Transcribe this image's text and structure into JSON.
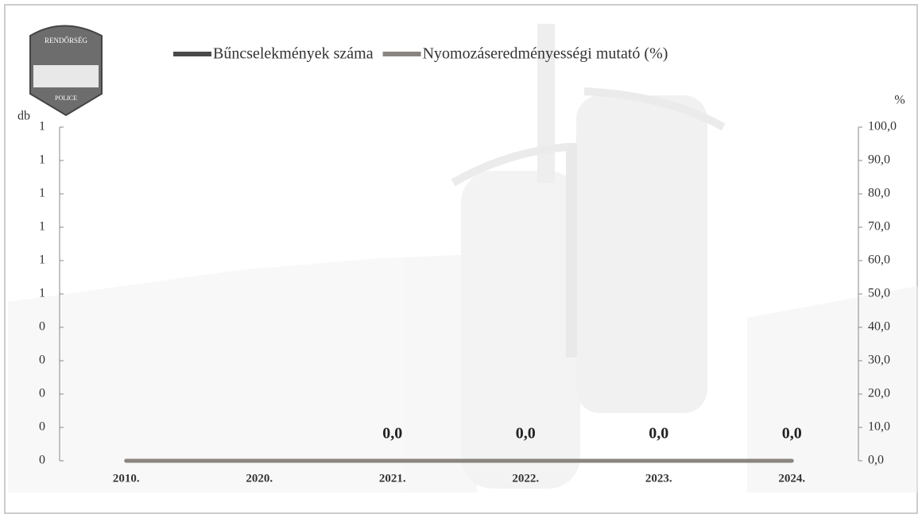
{
  "logo": {
    "top": "RENDŐRSÉG",
    "bottom": "POLICE"
  },
  "chart_data": {
    "type": "line",
    "y_label": "db",
    "y2_label": "%",
    "categories": [
      "2010.",
      "2020.",
      "2021.",
      "2022.",
      "2023.",
      "2024."
    ],
    "series": [
      {
        "name": "Bűncselekmények száma",
        "color": "#4a4a4a",
        "values": [
          0,
          0,
          0,
          0,
          0,
          0
        ]
      },
      {
        "name": "Nyomozáseredményességi mutató (%)",
        "color": "#8a8580",
        "axis": "y2",
        "values": [
          0,
          0,
          0,
          0,
          0,
          0
        ],
        "value_labels": [
          null,
          null,
          "0,0",
          "0,0",
          "0,0",
          "0,0"
        ]
      }
    ],
    "ylim": [
      0,
      1
    ],
    "yticks": [
      0,
      {
        "value": 0.1,
        "label": "0"
      },
      {
        "value": 0.2,
        "label": "0"
      },
      {
        "value": 0.3,
        "label": "0"
      },
      {
        "value": 0.4,
        "label": "0"
      },
      {
        "value": 0.5,
        "label": "1"
      },
      {
        "value": 0.6,
        "label": "1"
      },
      {
        "value": 0.7,
        "label": "1"
      },
      {
        "value": 0.8,
        "label": "1"
      },
      {
        "value": 0.9,
        "label": "1"
      },
      {
        "value": 1,
        "label": "1"
      }
    ],
    "y2lim": [
      0,
      100
    ],
    "y2ticks": [
      {
        "value": 0,
        "label": "0,0"
      },
      {
        "value": 10,
        "label": "10,0"
      },
      {
        "value": 20,
        "label": "20,0"
      },
      {
        "value": 30,
        "label": "30,0"
      },
      {
        "value": 40,
        "label": "40,0"
      },
      {
        "value": 50,
        "label": "50,0"
      },
      {
        "value": 60,
        "label": "60,0"
      },
      {
        "value": 70,
        "label": "70,0"
      },
      {
        "value": 80,
        "label": "80,0"
      },
      {
        "value": 90,
        "label": "90,0"
      },
      {
        "value": 100,
        "label": "100,0"
      }
    ]
  }
}
